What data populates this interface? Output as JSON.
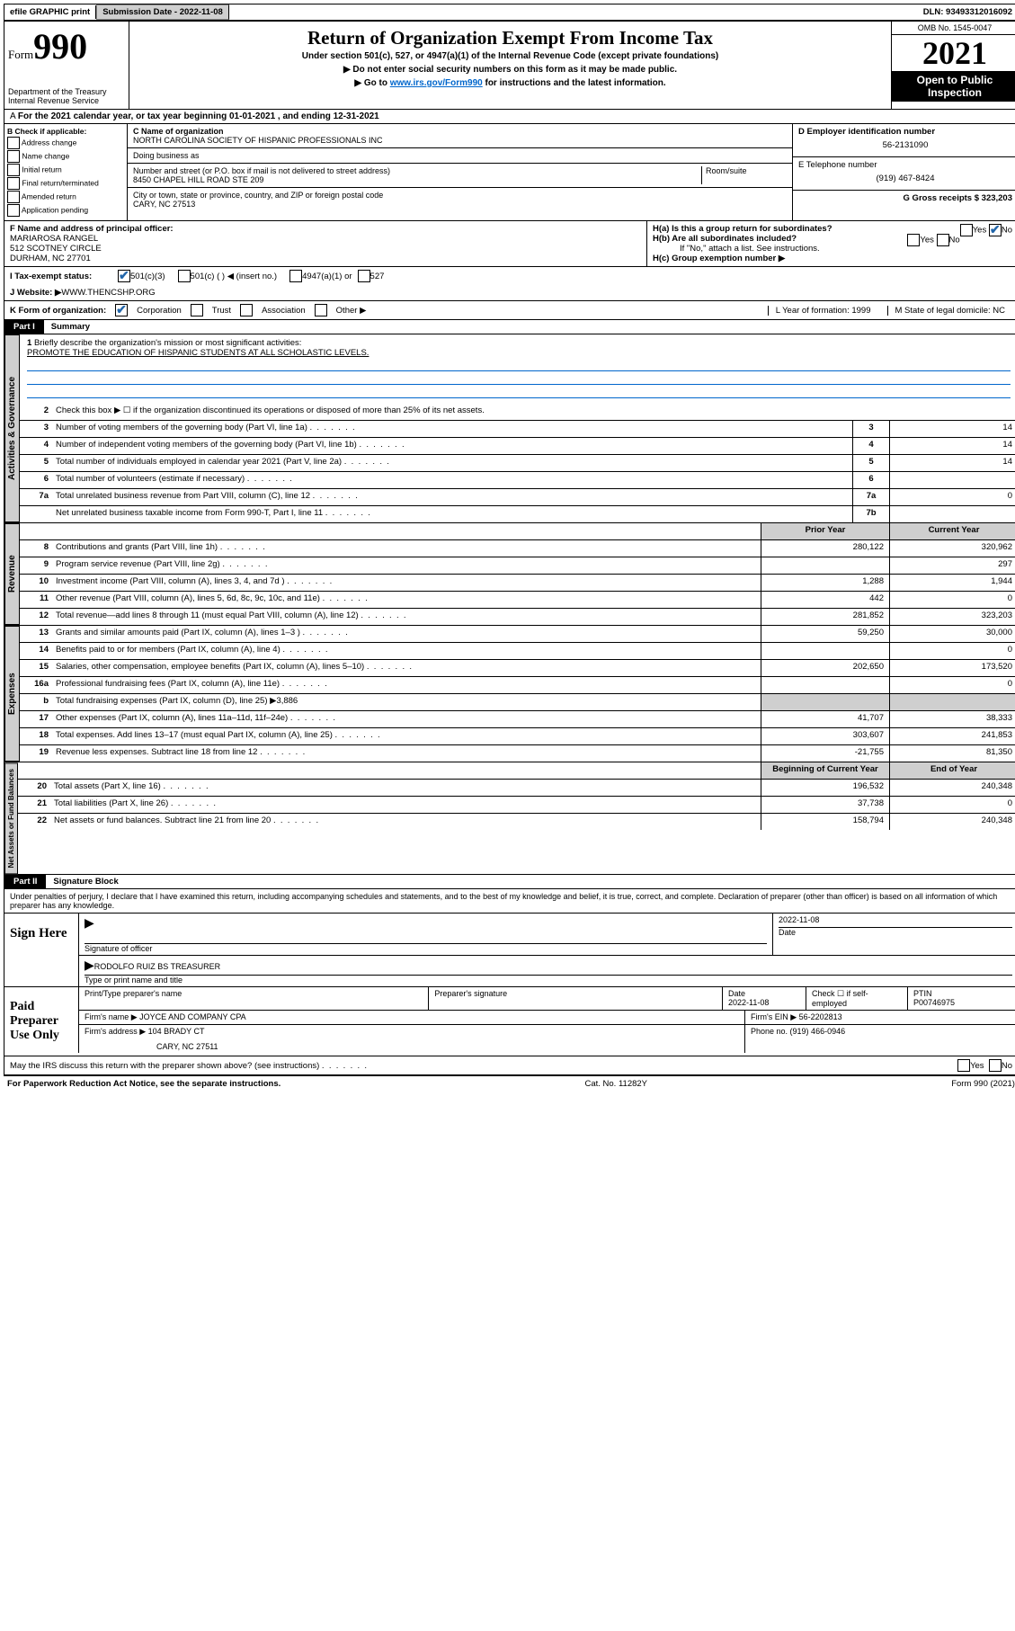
{
  "top": {
    "efile": "efile GRAPHIC print",
    "submission_label": "Submission Date - 2022-11-08",
    "dln_label": "DLN: 93493312016092"
  },
  "header": {
    "form_label": "Form",
    "form_num": "990",
    "dept": "Department of the Treasury\nInternal Revenue Service",
    "title": "Return of Organization Exempt From Income Tax",
    "sub1": "Under section 501(c), 527, or 4947(a)(1) of the Internal Revenue Code (except private foundations)",
    "sub2": "▶ Do not enter social security numbers on this form as it may be made public.",
    "sub3_prefix": "▶ Go to ",
    "sub3_link": "www.irs.gov/Form990",
    "sub3_suffix": " for instructions and the latest information.",
    "omb": "OMB No. 1545-0047",
    "year": "2021",
    "public": "Open to Public Inspection"
  },
  "row_a": "For the 2021 calendar year, or tax year beginning 01-01-2021   , and ending 12-31-2021",
  "col_b": {
    "hdr": "B Check if applicable:",
    "opts": [
      "Address change",
      "Name change",
      "Initial return",
      "Final return/terminated",
      "Amended return",
      "Application pending"
    ]
  },
  "org": {
    "c_label": "C Name of organization",
    "name": "NORTH CAROLINA SOCIETY OF HISPANIC PROFESSIONALS INC",
    "dba_label": "Doing business as",
    "addr_label": "Number and street (or P.O. box if mail is not delivered to street address)",
    "room_label": "Room/suite",
    "addr": "8450 CHAPEL HILL ROAD STE 209",
    "city_label": "City or town, state or province, country, and ZIP or foreign postal code",
    "city": "CARY, NC  27513"
  },
  "right": {
    "d_label": "D Employer identification number",
    "ein": "56-2131090",
    "e_label": "E Telephone number",
    "phone": "(919) 467-8424",
    "g_label": "G Gross receipts $ 323,203"
  },
  "f": {
    "label": "F  Name and address of principal officer:",
    "name": "MARIAROSA RANGEL",
    "addr1": "512 SCOTNEY CIRCLE",
    "addr2": "DURHAM, NC  27701"
  },
  "h": {
    "a": "H(a)  Is this a group return for subordinates?",
    "b": "H(b)  Are all subordinates included?",
    "note": "If \"No,\" attach a list. See instructions.",
    "c": "H(c)  Group exemption number ▶",
    "yes": "Yes",
    "no": "No"
  },
  "i_label": "I   Tax-exempt status:",
  "i_opts": [
    "501(c)(3)",
    "501(c) (  ) ◀ (insert no.)",
    "4947(a)(1) or",
    "527"
  ],
  "j_label": "J   Website: ▶  ",
  "j_val": "WWW.THENCSHP.ORG",
  "k_label": "K Form of organization:",
  "k_opts": [
    "Corporation",
    "Trust",
    "Association",
    "Other ▶"
  ],
  "l_label": "L Year of formation: 1999",
  "m_label": "M State of legal domicile: NC",
  "part1": {
    "hdr": "Part I",
    "title": "Summary"
  },
  "vtabs": {
    "gov": "Activities & Governance",
    "rev": "Revenue",
    "exp": "Expenses",
    "net": "Net Assets or Fund Balances"
  },
  "q1": {
    "label": "Briefly describe the organization's mission or most significant activities:",
    "text": "PROMOTE THE EDUCATION OF HISPANIC STUDENTS AT ALL SCHOLASTIC LEVELS."
  },
  "q2": "Check this box ▶ ☐  if the organization discontinued its operations or disposed of more than 25% of its net assets.",
  "lines": {
    "3": {
      "d": "Number of voting members of the governing body (Part VI, line 1a)",
      "box": "3",
      "v": "14"
    },
    "4": {
      "d": "Number of independent voting members of the governing body (Part VI, line 1b)",
      "box": "4",
      "v": "14"
    },
    "5": {
      "d": "Total number of individuals employed in calendar year 2021 (Part V, line 2a)",
      "box": "5",
      "v": "14"
    },
    "6": {
      "d": "Total number of volunteers (estimate if necessary)",
      "box": "6",
      "v": ""
    },
    "7a": {
      "d": "Total unrelated business revenue from Part VIII, column (C), line 12",
      "box": "7a",
      "v": "0"
    },
    "7b": {
      "d": "Net unrelated business taxable income from Form 990-T, Part I, line 11",
      "box": "7b",
      "v": ""
    }
  },
  "col_hdrs": {
    "prior": "Prior Year",
    "current": "Current Year",
    "boc": "Beginning of Current Year",
    "eoy": "End of Year"
  },
  "rev": [
    {
      "n": "8",
      "d": "Contributions and grants (Part VIII, line 1h)",
      "p": "280,122",
      "c": "320,962"
    },
    {
      "n": "9",
      "d": "Program service revenue (Part VIII, line 2g)",
      "p": "",
      "c": "297"
    },
    {
      "n": "10",
      "d": "Investment income (Part VIII, column (A), lines 3, 4, and 7d )",
      "p": "1,288",
      "c": "1,944"
    },
    {
      "n": "11",
      "d": "Other revenue (Part VIII, column (A), lines 5, 6d, 8c, 9c, 10c, and 11e)",
      "p": "442",
      "c": "0"
    },
    {
      "n": "12",
      "d": "Total revenue—add lines 8 through 11 (must equal Part VIII, column (A), line 12)",
      "p": "281,852",
      "c": "323,203"
    }
  ],
  "exp": [
    {
      "n": "13",
      "d": "Grants and similar amounts paid (Part IX, column (A), lines 1–3 )",
      "p": "59,250",
      "c": "30,000"
    },
    {
      "n": "14",
      "d": "Benefits paid to or for members (Part IX, column (A), line 4)",
      "p": "",
      "c": "0"
    },
    {
      "n": "15",
      "d": "Salaries, other compensation, employee benefits (Part IX, column (A), lines 5–10)",
      "p": "202,650",
      "c": "173,520"
    },
    {
      "n": "16a",
      "d": "Professional fundraising fees (Part IX, column (A), line 11e)",
      "p": "",
      "c": "0"
    },
    {
      "n": "b",
      "d": "Total fundraising expenses (Part IX, column (D), line 25) ▶3,886",
      "gray": true
    },
    {
      "n": "17",
      "d": "Other expenses (Part IX, column (A), lines 11a–11d, 11f–24e)",
      "p": "41,707",
      "c": "38,333"
    },
    {
      "n": "18",
      "d": "Total expenses. Add lines 13–17 (must equal Part IX, column (A), line 25)",
      "p": "303,607",
      "c": "241,853"
    },
    {
      "n": "19",
      "d": "Revenue less expenses. Subtract line 18 from line 12",
      "p": "-21,755",
      "c": "81,350"
    }
  ],
  "net": [
    {
      "n": "20",
      "d": "Total assets (Part X, line 16)",
      "p": "196,532",
      "c": "240,348"
    },
    {
      "n": "21",
      "d": "Total liabilities (Part X, line 26)",
      "p": "37,738",
      "c": "0"
    },
    {
      "n": "22",
      "d": "Net assets or fund balances. Subtract line 21 from line 20",
      "p": "158,794",
      "c": "240,348"
    }
  ],
  "part2": {
    "hdr": "Part II",
    "title": "Signature Block"
  },
  "penalties": "Under penalties of perjury, I declare that I have examined this return, including accompanying schedules and statements, and to the best of my knowledge and belief, it is true, correct, and complete. Declaration of preparer (other than officer) is based on all information of which preparer has any knowledge.",
  "sign": {
    "here": "Sign Here",
    "sig_label": "Signature of officer",
    "date": "2022-11-08",
    "name": "RODOLFO RUIZ BS TREASURER",
    "name_label": "Type or print name and title"
  },
  "paid": {
    "title": "Paid Preparer Use Only",
    "col1": "Print/Type preparer's name",
    "col2": "Preparer's signature",
    "col3_label": "Date",
    "col3": "2022-11-08",
    "col4_label": "Check ☐ if self-employed",
    "col5_label": "PTIN",
    "col5": "P00746975",
    "firm_label": "Firm's name    ▶ ",
    "firm": "JOYCE AND COMPANY CPA",
    "ein_label": "Firm's EIN ▶ ",
    "ein": "56-2202813",
    "addr_label": "Firm's address ▶ ",
    "addr1": "104 BRADY CT",
    "addr2": "CARY, NC  27511",
    "phone_label": "Phone no. ",
    "phone": "(919) 466-0946"
  },
  "may_irs": "May the IRS discuss this return with the preparer shown above? (see instructions)",
  "footer": {
    "l": "For Paperwork Reduction Act Notice, see the separate instructions.",
    "c": "Cat. No. 11282Y",
    "r": "Form 990 (2021)"
  }
}
